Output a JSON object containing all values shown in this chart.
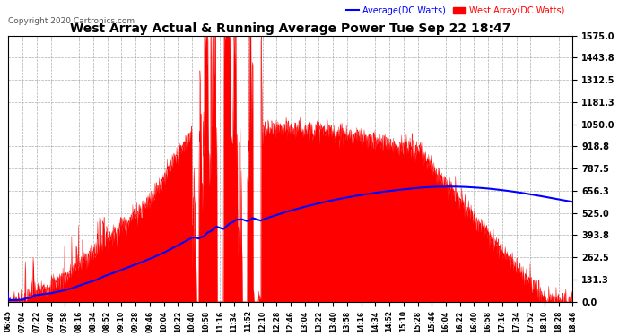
{
  "title": "West Array Actual & Running Average Power Tue Sep 22 18:47",
  "copyright": "Copyright 2020 Cartronics.com",
  "legend_avg": "Average(DC Watts)",
  "legend_west": "West Array(DC Watts)",
  "y_ticks": [
    0.0,
    131.3,
    262.5,
    393.8,
    525.0,
    656.3,
    787.5,
    918.8,
    1050.0,
    1181.3,
    1312.5,
    1443.8,
    1575.0
  ],
  "ymax": 1575.0,
  "ymin": 0.0,
  "background_color": "#ffffff",
  "plot_bg_color": "#ffffff",
  "grid_color": "#999999",
  "red_color": "#ff0000",
  "blue_color": "#0000ff",
  "title_color": "#000000",
  "x_labels": [
    "06:45",
    "07:04",
    "07:22",
    "07:40",
    "07:58",
    "08:16",
    "08:34",
    "08:52",
    "09:10",
    "09:28",
    "09:46",
    "10:04",
    "10:22",
    "10:40",
    "10:58",
    "11:16",
    "11:34",
    "11:52",
    "12:10",
    "12:28",
    "12:46",
    "13:04",
    "13:22",
    "13:40",
    "13:58",
    "14:16",
    "14:34",
    "14:52",
    "15:10",
    "15:28",
    "15:46",
    "16:04",
    "16:22",
    "16:40",
    "16:58",
    "17:16",
    "17:34",
    "17:52",
    "18:10",
    "18:28",
    "18:46"
  ]
}
